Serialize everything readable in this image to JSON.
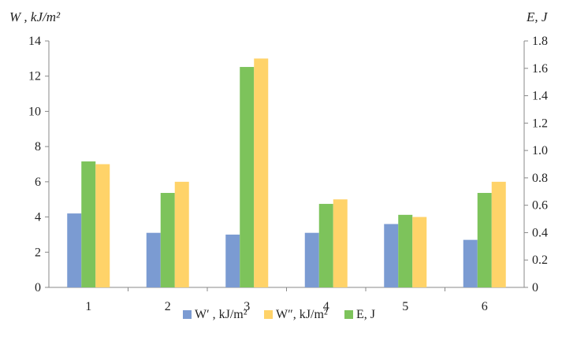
{
  "chart_data": {
    "type": "bar",
    "categories": [
      "1",
      "2",
      "3",
      "4",
      "5",
      "6"
    ],
    "series": [
      {
        "name": "W′ , kJ/m²",
        "axis": "left",
        "color": "#7b9bd2",
        "values": [
          4.2,
          3.1,
          3.0,
          3.1,
          3.6,
          2.7
        ]
      },
      {
        "name": "E, J",
        "axis": "right",
        "color": "#7dc35b",
        "values": [
          0.92,
          0.69,
          1.61,
          0.61,
          0.53,
          0.69
        ]
      },
      {
        "name": "W″, kJ/m²",
        "axis": "left",
        "color": "#ffd369",
        "values": [
          7.0,
          6.0,
          13.0,
          5.0,
          4.0,
          6.0
        ]
      }
    ],
    "legend_order": [
      0,
      2,
      1
    ],
    "ylabel_left": "W , kJ/m²",
    "ylabel_right": "E, J",
    "ylim_left": [
      0,
      14
    ],
    "ylim_right": [
      0,
      1.8
    ],
    "yticks_left": [
      "0",
      "2",
      "4",
      "6",
      "8",
      "10",
      "12",
      "14"
    ],
    "yticks_right": [
      "0",
      "0.2",
      "0.4",
      "0.6",
      "0.8",
      "1.0",
      "1.2",
      "1.4",
      "1.6",
      "1.8"
    ],
    "legend_position": "bottom",
    "grid": false
  }
}
